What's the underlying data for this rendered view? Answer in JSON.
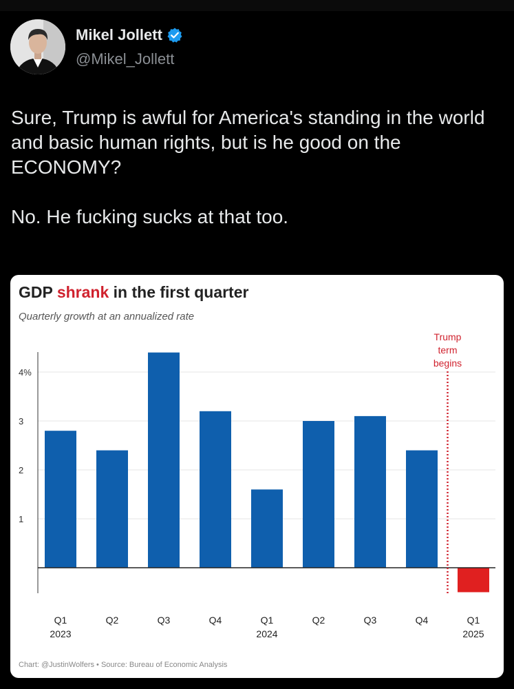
{
  "post": {
    "display_name": "Mikel Jollett",
    "handle": "@Mikel_Jollett",
    "text": "Sure, Trump is awful for America's standing in the world and basic human rights, but is he good on the ECONOMY?\n\nNo. He fucking sucks at that too.",
    "verified_color": "#1d9bf0"
  },
  "chart_card": {
    "title_prefix": "GDP ",
    "title_highlight": "shrank",
    "title_suffix": " in the first quarter",
    "subtitle": "Quarterly growth at an annualized rate",
    "footer_credit": "Chart: @JustinWolfers",
    "footer_separator": " • ",
    "footer_source": "Source: Bureau of Economic Analysis"
  },
  "chart_data": {
    "type": "bar",
    "categories": [
      "Q1",
      "Q2",
      "Q3",
      "Q4",
      "Q1",
      "Q2",
      "Q3",
      "Q4",
      "Q1"
    ],
    "year_labels": [
      "2023",
      "",
      "",
      "",
      "2024",
      "",
      "",
      "",
      "2025"
    ],
    "values": [
      2.8,
      2.4,
      4.4,
      3.2,
      1.6,
      3.0,
      3.1,
      2.4,
      -0.5
    ],
    "y_ticks": [
      1,
      2,
      3,
      4
    ],
    "y_tick_labels": [
      "1",
      "2",
      "3",
      "4%"
    ],
    "ylim": [
      -0.5,
      4.5
    ],
    "grid": true,
    "bar_color": "#0f5fad",
    "negative_bar_color": "#e02020",
    "annotation": {
      "lines": [
        "Trump",
        "term",
        "begins"
      ],
      "color": "#d0222e",
      "between_index": 7
    }
  }
}
